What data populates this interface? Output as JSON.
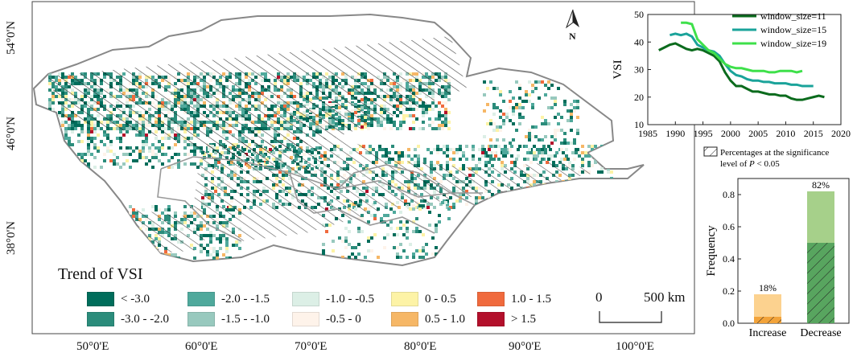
{
  "map": {
    "lat_labels": [
      "54°0'N",
      "46°0'N",
      "38°0'N"
    ],
    "lon_labels": [
      "50°0'E",
      "60°0'E",
      "70°0'E",
      "80°0'E",
      "90°0'E",
      "100°0'E"
    ],
    "north_label": "N",
    "scalebar": {
      "start": "0",
      "end": "500 km"
    },
    "legend": {
      "title": "Trend of VSI",
      "items": [
        {
          "label": "< -3.0",
          "color": "#006d5b"
        },
        {
          "label": "-3.0 - -2.0",
          "color": "#2b8c7b"
        },
        {
          "label": "-2.0 - -1.5",
          "color": "#4fa99c"
        },
        {
          "label": "-1.5 - -1.0",
          "color": "#98c9be"
        },
        {
          "label": "-1.0 - -0.5",
          "color": "#dcefe6"
        },
        {
          "label": "-0.5 - 0",
          "color": "#fef3ea"
        },
        {
          "label": "0 - 0.5",
          "color": "#fdf3a6"
        },
        {
          "label": "0.5 - 1.0",
          "color": "#f6b766"
        },
        {
          "label": "1.0 - 1.5",
          "color": "#f06a3d"
        },
        {
          "label": "> 1.5",
          "color": "#b3102b"
        }
      ]
    }
  },
  "chart_data": [
    {
      "type": "line",
      "ylabel": "VSI",
      "xlim": [
        1985,
        2020
      ],
      "ylim": [
        10,
        50
      ],
      "xticks": [
        1985,
        1990,
        1995,
        2000,
        2005,
        2010,
        2015,
        2020
      ],
      "yticks": [
        10,
        20,
        30,
        40,
        50
      ],
      "legend_position": "top-right",
      "series": [
        {
          "name": "window_size=11",
          "color": "#0b6b1d",
          "x": [
            1987,
            1988,
            1989,
            1990,
            1991,
            1992,
            1993,
            1994,
            1995,
            1996,
            1997,
            1998,
            1999,
            2000,
            2001,
            2002,
            2003,
            2004,
            2005,
            2006,
            2007,
            2008,
            2009,
            2010,
            2011,
            2012,
            2013,
            2014,
            2015,
            2016,
            2017
          ],
          "y": [
            37,
            38,
            39,
            39.5,
            38.5,
            37.5,
            37,
            37.5,
            37,
            36,
            35,
            33,
            29,
            26,
            24,
            24,
            23,
            22,
            22,
            21.5,
            21,
            21,
            20.5,
            20.5,
            19.5,
            19,
            19,
            19.5,
            20,
            20.5,
            20
          ]
        },
        {
          "name": "window_size=15",
          "color": "#1aa39a",
          "x": [
            1989,
            1990,
            1991,
            1992,
            1993,
            1994,
            1995,
            1996,
            1997,
            1998,
            1999,
            2000,
            2001,
            2002,
            2003,
            2004,
            2005,
            2006,
            2007,
            2008,
            2009,
            2010,
            2011,
            2012,
            2013,
            2014,
            2015
          ],
          "y": [
            42.5,
            43,
            42.5,
            43,
            42,
            39,
            38,
            37,
            36.5,
            35,
            32,
            29.5,
            28,
            27.5,
            26.5,
            26,
            26,
            25.5,
            25.5,
            25,
            25,
            25,
            24.5,
            24.5,
            24,
            24,
            24
          ]
        },
        {
          "name": "window_size=19",
          "color": "#3ee04a",
          "x": [
            1991,
            1992,
            1993,
            1994,
            1995,
            1996,
            1997,
            1998,
            1999,
            2000,
            2001,
            2002,
            2003,
            2004,
            2005,
            2006,
            2007,
            2008,
            2009,
            2010,
            2011,
            2012,
            2013
          ],
          "y": [
            47,
            47,
            46.5,
            41,
            39,
            37,
            36,
            34,
            32,
            31,
            30.5,
            30.5,
            30,
            29.5,
            29.5,
            29.5,
            29,
            29,
            29.5,
            29.5,
            29.5,
            29,
            29.5
          ]
        }
      ]
    },
    {
      "type": "bar",
      "ylabel": "Frequency",
      "categories": [
        "Increase",
        "Decrease"
      ],
      "values": [
        0.18,
        0.82
      ],
      "significant_values": [
        0.04,
        0.5
      ],
      "data_labels": [
        "18%",
        "82%"
      ],
      "colors": {
        "increase": "#fcd28f",
        "increase_sig": "#f2a33a",
        "decrease": "#a6d08a",
        "decrease_sig": "#58a55f"
      },
      "ylim": [
        0,
        0.9
      ],
      "yticks": [
        "0.0",
        "0.2",
        "0.4",
        "0.6",
        "0.8"
      ],
      "legend": {
        "label_line1": "Percentages at the significance",
        "label_line2_prefix": "level of ",
        "label_line2_var": "P",
        "label_line2_suffix": " < 0.05",
        "position": "top"
      }
    }
  ]
}
